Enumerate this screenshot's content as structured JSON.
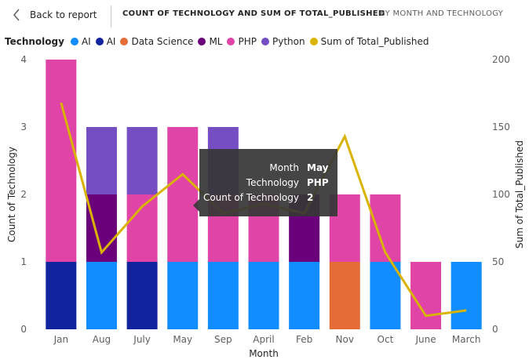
{
  "header": {
    "back_label": "Back to report",
    "title": "COUNT OF TECHNOLOGY AND SUM OF TOTAL_PUBLISHED",
    "subtitle": "BY MONTH AND TECHNOLOGY"
  },
  "legend": {
    "title": "Technology",
    "items": [
      {
        "label": "AI",
        "color": "#118DFF"
      },
      {
        "label": "AI",
        "color": "#12239E"
      },
      {
        "label": "Data Science",
        "color": "#E66C37"
      },
      {
        "label": "ML",
        "color": "#6B007B"
      },
      {
        "label": "PHP",
        "color": "#E044A7"
      },
      {
        "label": "Python",
        "color": "#744EC2"
      },
      {
        "label": "Sum of Total_Published",
        "color": "#D9B300"
      }
    ]
  },
  "tooltip": {
    "rows": [
      {
        "label": "Month",
        "value": "May"
      },
      {
        "label": "Technology",
        "value": "PHP"
      },
      {
        "label": "Count of Technology",
        "value": "2"
      }
    ]
  },
  "chart_data": {
    "type": "bar",
    "stacked": true,
    "title": "Count of Technology and Sum of Total_Published by Month and Technology",
    "xlabel": "Month",
    "ylabel": "Count of Technology",
    "y2label": "Sum of Total_Published",
    "ylim": [
      0,
      4
    ],
    "y2lim": [
      0,
      200
    ],
    "yticks": [
      0,
      1,
      2,
      3,
      4
    ],
    "y2ticks": [
      0,
      50,
      100,
      150,
      200
    ],
    "categories": [
      "Jan",
      "Aug",
      "July",
      "May",
      "Sep",
      "April",
      "Feb",
      "Nov",
      "Oct",
      "June",
      "March"
    ],
    "series": [
      {
        "name": "AI",
        "color": "#118DFF",
        "values": [
          0,
          1,
          0,
          1,
          1,
          1,
          1,
          0,
          1,
          0,
          1
        ]
      },
      {
        "name": "AI",
        "color": "#12239E",
        "values": [
          1,
          0,
          1,
          0,
          0,
          0,
          0,
          0,
          0,
          0,
          0
        ]
      },
      {
        "name": "Data Science",
        "color": "#E66C37",
        "values": [
          0,
          0,
          0,
          0,
          0,
          0,
          0,
          1,
          0,
          0,
          0
        ]
      },
      {
        "name": "ML",
        "color": "#6B007B",
        "values": [
          0,
          1,
          0,
          0,
          0,
          0,
          1,
          0,
          0,
          0,
          0
        ]
      },
      {
        "name": "PHP",
        "color": "#E044A7",
        "values": [
          3,
          0,
          1,
          2,
          1,
          1,
          0,
          1,
          1,
          1,
          0
        ]
      },
      {
        "name": "Python",
        "color": "#744EC2",
        "values": [
          0,
          1,
          1,
          0,
          1,
          0,
          0,
          0,
          0,
          0,
          0
        ]
      }
    ],
    "line": {
      "name": "Sum of Total_Published",
      "color": "#D9B300",
      "axis": "secondary",
      "values": [
        168,
        57,
        91,
        115,
        86,
        93,
        86,
        143,
        57,
        10,
        14
      ]
    }
  }
}
